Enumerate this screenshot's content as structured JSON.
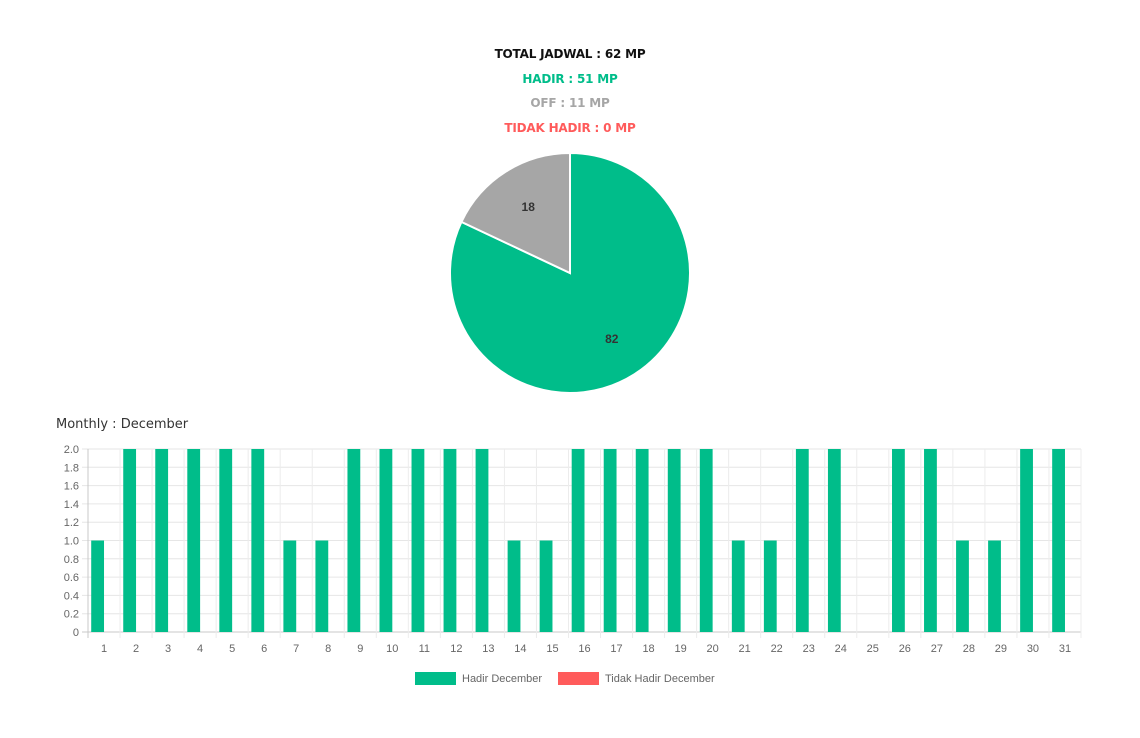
{
  "summary": {
    "total": "TOTAL JADWAL : 62 MP",
    "hadir": "HADIR : 51 MP",
    "off": "OFF : 11 MP",
    "tidak_hadir": "TIDAK HADIR : 0 MP"
  },
  "monthly_title": "Monthly : December",
  "colors": {
    "hadir": "#00bd8a",
    "off": "#a6a6a6",
    "tidak_hadir": "#ff5b5b",
    "total": "#111111"
  },
  "chart_data": [
    {
      "type": "pie",
      "slices": [
        {
          "label": "82",
          "value": 82,
          "color": "#00bd8a"
        },
        {
          "label": "18",
          "value": 18,
          "color": "#a6a6a6"
        }
      ]
    },
    {
      "type": "bar",
      "categories": [
        "1",
        "2",
        "3",
        "4",
        "5",
        "6",
        "7",
        "8",
        "9",
        "10",
        "11",
        "12",
        "13",
        "14",
        "15",
        "16",
        "17",
        "18",
        "19",
        "20",
        "21",
        "22",
        "23",
        "24",
        "25",
        "26",
        "27",
        "28",
        "29",
        "30",
        "31"
      ],
      "series": [
        {
          "name": "Hadir December",
          "color": "#00bd8a",
          "values": [
            1,
            2,
            2,
            2,
            2,
            2,
            1,
            1,
            2,
            2,
            2,
            2,
            2,
            1,
            1,
            2,
            2,
            2,
            2,
            2,
            1,
            1,
            2,
            2,
            0,
            2,
            2,
            1,
            1,
            2,
            2
          ]
        },
        {
          "name": "Tidak Hadir December",
          "color": "#ff5b5b",
          "values": [
            0,
            0,
            0,
            0,
            0,
            0,
            0,
            0,
            0,
            0,
            0,
            0,
            0,
            0,
            0,
            0,
            0,
            0,
            0,
            0,
            0,
            0,
            0,
            0,
            0,
            0,
            0,
            0,
            0,
            0,
            0
          ]
        }
      ],
      "ylim": [
        0,
        2
      ],
      "yticks": [
        "0",
        "0.2",
        "0.4",
        "0.6",
        "0.8",
        "1.0",
        "1.2",
        "1.4",
        "1.6",
        "1.8",
        "2.0"
      ],
      "grid": true,
      "legend": "bottom"
    }
  ]
}
